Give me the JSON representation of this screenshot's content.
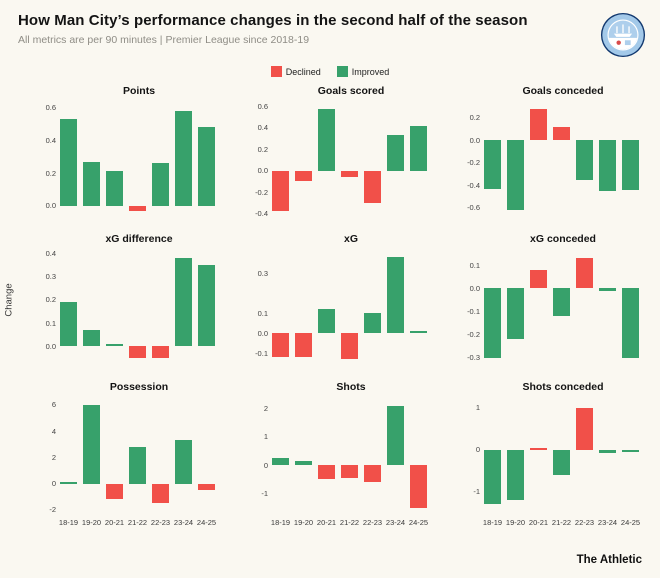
{
  "header": {
    "title": "How Man City’s performance changes in the second half of the season",
    "subtitle": "All metrics are per 90 minutes | Premier League since 2018-19"
  },
  "legend": {
    "declined": "Declined",
    "improved": "Improved"
  },
  "colors": {
    "improved": "#37a16b",
    "declined": "#f15049",
    "background": "#faf8f1"
  },
  "ylabel": "Change",
  "footer": "The Athletic",
  "badge": "manchester-city-crest",
  "categories": [
    "18-19",
    "19-20",
    "20-21",
    "21-22",
    "22-23",
    "23-24",
    "24-25"
  ],
  "chart_data": [
    {
      "type": "bar",
      "title": "Points",
      "categories": [
        "18-19",
        "19-20",
        "20-21",
        "21-22",
        "22-23",
        "23-24",
        "24-25"
      ],
      "values": [
        0.53,
        0.27,
        0.21,
        -0.03,
        0.26,
        0.58,
        0.48
      ],
      "ylim": [
        -0.08,
        0.64
      ],
      "tick_values": [
        0.6,
        0.4,
        0.2,
        0.0
      ],
      "tick_labels": [
        "0.6",
        "0.4",
        "0.2",
        "0.0"
      ],
      "improved_when": "positive",
      "show_x_labels": false,
      "grid": false,
      "legend_position": "top"
    },
    {
      "type": "bar",
      "title": "Goals scored",
      "categories": [
        "18-19",
        "19-20",
        "20-21",
        "21-22",
        "22-23",
        "23-24",
        "24-25"
      ],
      "values": [
        -0.38,
        -0.1,
        0.58,
        -0.06,
        -0.3,
        0.33,
        0.42
      ],
      "ylim": [
        -0.45,
        0.65
      ],
      "tick_values": [
        0.6,
        0.4,
        0.2,
        0.0,
        -0.2,
        -0.4
      ],
      "tick_labels": [
        "0.6",
        "0.4",
        "0.2",
        "0.0",
        "-0.2",
        "-0.4"
      ],
      "improved_when": "positive",
      "show_x_labels": false
    },
    {
      "type": "bar",
      "title": "Goals conceded",
      "categories": [
        "18-19",
        "19-20",
        "20-21",
        "21-22",
        "22-23",
        "23-24",
        "24-25"
      ],
      "values": [
        -0.43,
        -0.62,
        0.28,
        0.12,
        -0.35,
        -0.45,
        -0.44
      ],
      "ylim": [
        -0.7,
        0.35
      ],
      "tick_values": [
        0.2,
        0.0,
        -0.2,
        -0.4,
        -0.6
      ],
      "tick_labels": [
        "0.2",
        "0.0",
        "-0.2",
        "-0.4",
        "-0.6"
      ],
      "improved_when": "negative",
      "show_x_labels": false
    },
    {
      "type": "bar",
      "title": "xG difference",
      "categories": [
        "18-19",
        "19-20",
        "20-21",
        "21-22",
        "22-23",
        "23-24",
        "24-25"
      ],
      "values": [
        0.19,
        0.07,
        0.01,
        -0.05,
        -0.05,
        0.38,
        0.35
      ],
      "ylim": [
        -0.09,
        0.42
      ],
      "tick_values": [
        0.4,
        0.3,
        0.2,
        0.1,
        0.0
      ],
      "tick_labels": [
        "0.4",
        "0.3",
        "0.2",
        "0.1",
        "0.0"
      ],
      "improved_when": "positive",
      "show_x_labels": false
    },
    {
      "type": "bar",
      "title": "xG",
      "categories": [
        "18-19",
        "19-20",
        "20-21",
        "21-22",
        "22-23",
        "23-24",
        "24-25"
      ],
      "values": [
        -0.12,
        -0.12,
        0.12,
        -0.13,
        0.1,
        0.38,
        0.01
      ],
      "ylim": [
        -0.17,
        0.42
      ],
      "tick_values": [
        0.3,
        0.1,
        0.0,
        -0.1
      ],
      "tick_labels": [
        "0.3",
        "0.1",
        "0.0",
        "-0.1"
      ],
      "improved_when": "positive",
      "show_x_labels": false
    },
    {
      "type": "bar",
      "title": "xG conceded",
      "categories": [
        "18-19",
        "19-20",
        "20-21",
        "21-22",
        "22-23",
        "23-24",
        "24-25"
      ],
      "values": [
        -0.3,
        -0.22,
        0.08,
        -0.12,
        0.13,
        -0.01,
        -0.3
      ],
      "ylim": [
        -0.34,
        0.17
      ],
      "tick_values": [
        0.1,
        0.0,
        -0.1,
        -0.2,
        -0.3
      ],
      "tick_labels": [
        "0.1",
        "0.0",
        "-0.1",
        "-0.2",
        "-0.3"
      ],
      "improved_when": "negative",
      "show_x_labels": false
    },
    {
      "type": "bar",
      "title": "Possession",
      "categories": [
        "18-19",
        "19-20",
        "20-21",
        "21-22",
        "22-23",
        "23-24",
        "24-25"
      ],
      "values": [
        0.1,
        6.0,
        -1.2,
        2.8,
        -1.5,
        3.3,
        -0.5
      ],
      "ylim": [
        -2.4,
        6.6
      ],
      "tick_values": [
        6,
        4,
        2,
        0,
        -2
      ],
      "tick_labels": [
        "6",
        "4",
        "2",
        "0",
        "-2"
      ],
      "improved_when": "positive",
      "show_x_labels": true
    },
    {
      "type": "bar",
      "title": "Shots",
      "categories": [
        "18-19",
        "19-20",
        "20-21",
        "21-22",
        "22-23",
        "23-24",
        "24-25"
      ],
      "values": [
        0.25,
        0.15,
        -0.5,
        -0.45,
        -0.6,
        2.1,
        -1.5
      ],
      "ylim": [
        -1.75,
        2.4
      ],
      "tick_values": [
        2,
        1,
        0,
        -1
      ],
      "tick_labels": [
        "2",
        "1",
        "0",
        "-1"
      ],
      "improved_when": "positive",
      "show_x_labels": true
    },
    {
      "type": "bar",
      "title": "Shots conceded",
      "categories": [
        "18-19",
        "19-20",
        "20-21",
        "21-22",
        "22-23",
        "23-24",
        "24-25"
      ],
      "values": [
        -1.3,
        -1.2,
        0.05,
        -0.6,
        1.0,
        -0.08,
        -0.05
      ],
      "ylim": [
        -1.55,
        1.25
      ],
      "tick_values": [
        1,
        0,
        -1
      ],
      "tick_labels": [
        "1",
        "0",
        "-1"
      ],
      "improved_when": "negative",
      "show_x_labels": true
    }
  ]
}
